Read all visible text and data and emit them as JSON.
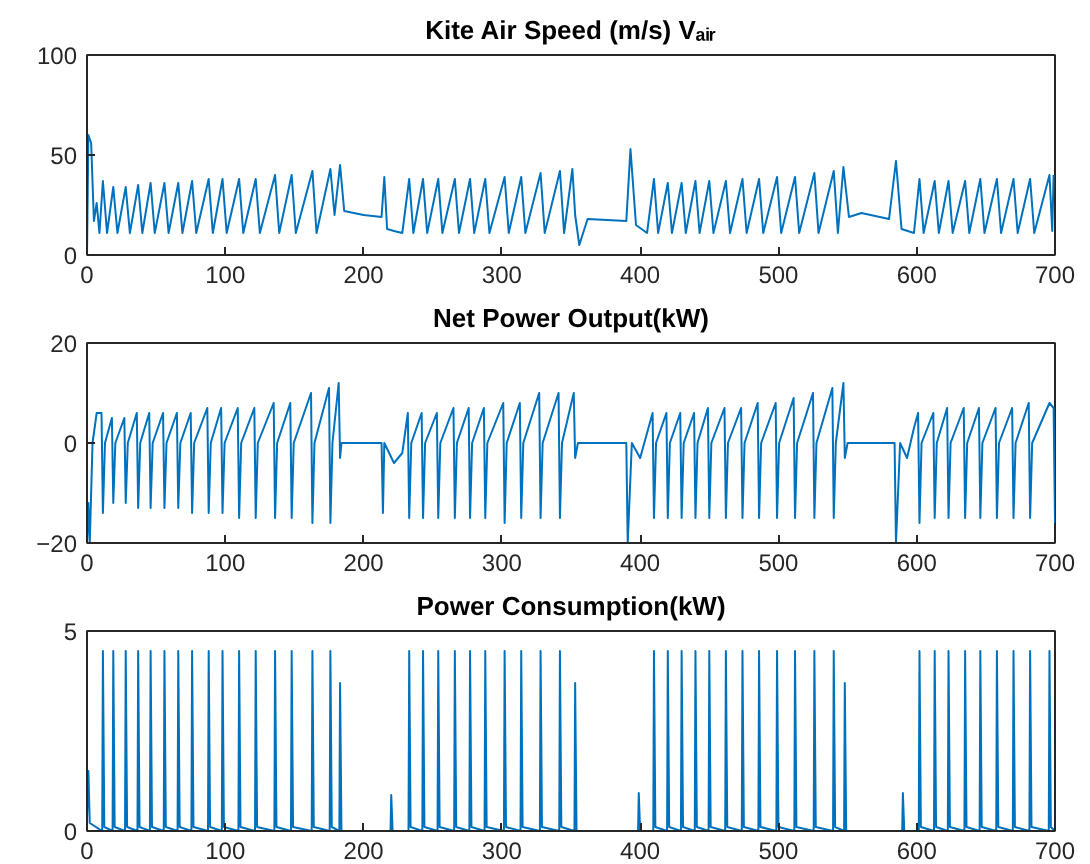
{
  "chart_data": [
    {
      "type": "line",
      "title": "Kite Air Speed (m/s) Vₐᵢᵣ",
      "xlim": [
        0,
        700
      ],
      "xticks": [
        0,
        100,
        200,
        300,
        400,
        500,
        600,
        700
      ],
      "ylim": [
        0,
        100
      ],
      "yticks": [
        0,
        50,
        100
      ],
      "series": [
        {
          "color": "#0072bd",
          "x": [
            0,
            1,
            3,
            5,
            7,
            9,
            11.5,
            14.5,
            19,
            22,
            28,
            31,
            37,
            40,
            46,
            49,
            56,
            59,
            66,
            69,
            76,
            79,
            88,
            91,
            98,
            101,
            110,
            113,
            122,
            125,
            136,
            139,
            148,
            151,
            163,
            166,
            176,
            179,
            183,
            186,
            200,
            213,
            215,
            217,
            222,
            228,
            233,
            236,
            243,
            246,
            254,
            257,
            266,
            269,
            277,
            280,
            288,
            291,
            302,
            305,
            314,
            317,
            328,
            331,
            342,
            345,
            351,
            353,
            356,
            362,
            390,
            393,
            397,
            405,
            410,
            413,
            420,
            423,
            430,
            433,
            440,
            443,
            450,
            453,
            462,
            465,
            474,
            477,
            486,
            489,
            499,
            502,
            512,
            515,
            526,
            529,
            540,
            543,
            547,
            551,
            560,
            580,
            585,
            589,
            598,
            602,
            605,
            613,
            616,
            623,
            626,
            635,
            638,
            646,
            649,
            658,
            661,
            670,
            673,
            682,
            685,
            696,
            698,
            699
          ],
          "values": [
            0,
            60,
            56,
            17,
            26,
            11,
            37,
            11,
            34,
            11,
            34,
            11,
            35,
            11,
            36,
            11,
            36,
            11,
            36,
            11,
            37,
            11,
            38,
            11,
            38,
            11,
            38,
            11,
            38,
            11,
            40,
            11,
            40,
            11,
            42,
            11,
            43,
            20,
            45,
            22,
            20,
            19,
            39,
            13,
            12,
            11,
            38,
            11,
            38,
            11,
            38,
            11,
            38,
            11,
            38,
            11,
            38,
            11,
            39,
            11,
            39,
            11,
            41,
            11,
            42,
            11,
            43,
            20,
            5,
            18,
            17,
            53,
            15,
            11,
            38,
            11,
            36,
            11,
            36,
            11,
            37,
            11,
            37,
            11,
            37,
            11,
            38,
            11,
            38,
            11,
            39,
            11,
            39,
            11,
            41,
            11,
            42,
            11,
            44,
            19,
            21,
            18,
            47,
            13,
            11,
            38,
            11,
            37,
            11,
            37,
            11,
            37,
            11,
            38,
            11,
            38,
            11,
            38,
            11,
            38,
            11,
            40,
            12,
            40
          ]
        }
      ]
    },
    {
      "type": "line",
      "title": "Net Power Output(kW)",
      "xlim": [
        0,
        700
      ],
      "xticks": [
        0,
        100,
        200,
        300,
        400,
        500,
        600,
        700
      ],
      "ylim": [
        -20,
        20
      ],
      "yticks": [
        -20,
        0,
        20
      ],
      "series": [
        {
          "color": "#0072bd",
          "x": [
            0,
            1,
            2,
            4,
            7,
            10.5,
            11.5,
            13,
            18,
            19,
            20.5,
            27,
            28,
            29.5,
            36,
            37,
            38.5,
            45,
            46,
            47.5,
            55,
            56,
            57.5,
            65,
            66,
            67.5,
            75,
            76,
            77.5,
            87,
            88,
            89.5,
            97,
            98,
            99.5,
            109,
            110,
            111.5,
            121,
            122,
            123.5,
            135,
            136,
            137.5,
            147,
            148,
            149.5,
            162,
            163,
            164.5,
            175,
            176,
            177.5,
            182,
            183,
            184,
            213,
            214,
            215,
            222,
            228,
            232,
            233,
            234.5,
            242,
            243,
            244.5,
            253,
            254,
            255.5,
            265,
            266,
            267.5,
            276,
            277,
            278.5,
            287,
            288,
            289.5,
            301,
            302,
            303.5,
            313,
            314,
            315.5,
            327,
            328,
            329.5,
            341,
            342,
            343.5,
            352,
            353,
            355,
            390,
            391,
            394,
            400,
            405,
            409,
            410,
            411.5,
            419,
            420,
            421.5,
            429,
            430,
            431.5,
            439,
            440,
            441.5,
            449,
            450,
            451.5,
            461,
            462,
            463.5,
            473,
            474,
            475.5,
            485,
            486,
            487.5,
            498,
            499,
            500.5,
            511,
            512,
            513.5,
            525,
            526,
            527.5,
            539,
            540,
            541.5,
            547,
            548,
            550,
            584,
            585,
            588,
            593,
            598,
            601,
            602,
            603.5,
            612,
            613,
            614.5,
            622,
            623,
            624.5,
            634,
            635,
            636.5,
            645,
            646,
            647.5,
            657,
            658,
            659.5,
            669,
            670,
            671.5,
            681,
            682,
            683.5,
            696,
            699,
            700
          ],
          "values": [
            -20,
            -12,
            -20,
            0,
            6,
            6,
            -14,
            0,
            5,
            -12,
            0,
            5,
            -12,
            0,
            6,
            -13,
            0,
            6,
            -13,
            0,
            6,
            -13,
            0,
            6,
            -13,
            0,
            6,
            -14,
            0,
            7,
            -14,
            0,
            7,
            -14,
            0,
            7,
            -15,
            0,
            7,
            -15,
            0,
            8,
            -15,
            0,
            8,
            -15,
            0,
            10,
            -16,
            0,
            11,
            -16,
            0,
            12,
            -3,
            0,
            0,
            -14,
            0,
            -4,
            -2,
            6,
            -15,
            0,
            6,
            -15,
            0,
            6,
            -15,
            0,
            7,
            -15,
            0,
            7,
            -15,
            0,
            7,
            -15,
            0,
            8,
            -16,
            0,
            8,
            -15,
            0,
            10,
            -15,
            0,
            10,
            -15,
            0,
            10,
            -3,
            0,
            0,
            -20,
            0,
            -3,
            2,
            6,
            -15,
            0,
            6,
            -15,
            0,
            6,
            -15,
            0,
            6,
            -15,
            0,
            7,
            -15,
            0,
            7,
            -15,
            0,
            7,
            -15,
            0,
            8,
            -15,
            0,
            8,
            -15,
            0,
            9,
            -15,
            0,
            10,
            -15,
            0,
            11,
            -15,
            0,
            12,
            -3,
            0,
            0,
            -20,
            0,
            -3,
            3,
            6,
            -16,
            0,
            6,
            -15,
            0,
            7,
            -15,
            0,
            7,
            -15,
            0,
            7,
            -15,
            0,
            7,
            -15,
            0,
            7,
            -15,
            0,
            8,
            -15,
            0,
            8,
            7,
            -16
          ]
        }
      ]
    },
    {
      "type": "line",
      "title": "Power Consumption(kW)",
      "xlim": [
        0,
        700
      ],
      "xticks": [
        0,
        100,
        200,
        300,
        400,
        500,
        600,
        700
      ],
      "ylim": [
        0,
        5
      ],
      "yticks": [
        0,
        5
      ],
      "series": [
        {
          "color": "#0072bd",
          "x": [
            0,
            1,
            2,
            11,
            11.5,
            12.5,
            18.5,
            19,
            20,
            27.5,
            28,
            29,
            36.5,
            37,
            38,
            45.5,
            46,
            47,
            55.5,
            56,
            57,
            65.5,
            66,
            67,
            75.5,
            76,
            77,
            87.5,
            88,
            89,
            97.5,
            98,
            99,
            109.5,
            110,
            111,
            121.5,
            122,
            123,
            135.5,
            136,
            137,
            147.5,
            148,
            149,
            162.5,
            163,
            164,
            175.5,
            176,
            177,
            182.5,
            183,
            184,
            219.5,
            220,
            221,
            232.5,
            233,
            234,
            242.5,
            243,
            244,
            253.5,
            254,
            255,
            265.5,
            266,
            267,
            276.5,
            277,
            278,
            287.5,
            288,
            289,
            301.5,
            302,
            303,
            313.5,
            314,
            315,
            327.5,
            328,
            329,
            341.5,
            342,
            343,
            352.5,
            353,
            354,
            398.5,
            399,
            400,
            409.5,
            410,
            411,
            419.5,
            420,
            421,
            429.5,
            430,
            431,
            439.5,
            440,
            441,
            449.5,
            450,
            451,
            461.5,
            462,
            463,
            473.5,
            474,
            475,
            485.5,
            486,
            487,
            498.5,
            499,
            500,
            511.5,
            512,
            513,
            525.5,
            526,
            527,
            539.5,
            540,
            541,
            547.5,
            548,
            549,
            589.5,
            590,
            591,
            601.5,
            602,
            603,
            612.5,
            613,
            614,
            622.5,
            623,
            624,
            634.5,
            635,
            636,
            645.5,
            646,
            647,
            657.5,
            658,
            659,
            669.5,
            670,
            671,
            681.5,
            682,
            683,
            695.5,
            696,
            697,
            700
          ],
          "values": [
            0.3,
            1.5,
            0.2,
            0,
            4.5,
            0.1,
            0,
            4.5,
            0.1,
            0,
            4.5,
            0.1,
            0,
            4.5,
            0.1,
            0,
            4.5,
            0.1,
            0,
            4.5,
            0.1,
            0,
            4.5,
            0.1,
            0,
            4.5,
            0.1,
            0,
            4.5,
            0.1,
            0,
            4.5,
            0.1,
            0,
            4.5,
            0.1,
            0,
            4.5,
            0.1,
            0,
            4.5,
            0.1,
            0,
            4.5,
            0.1,
            0,
            4.5,
            0.1,
            0,
            4.5,
            0.1,
            0,
            3.7,
            0,
            0,
            0.9,
            0,
            0,
            4.5,
            0.1,
            0,
            4.5,
            0.1,
            0,
            4.5,
            0.1,
            0,
            4.5,
            0.1,
            0,
            4.5,
            0.1,
            0,
            4.5,
            0.1,
            0,
            4.5,
            0.1,
            0,
            4.5,
            0.1,
            0,
            4.5,
            0.1,
            0,
            4.5,
            0.1,
            0,
            3.7,
            0,
            0,
            0.95,
            0,
            0,
            4.5,
            0.1,
            0,
            4.5,
            0.1,
            0,
            4.5,
            0.1,
            0,
            4.5,
            0.1,
            0,
            4.5,
            0.1,
            0,
            4.5,
            0.1,
            0,
            4.5,
            0.1,
            0,
            4.5,
            0.1,
            0,
            4.5,
            0.1,
            0,
            4.5,
            0.1,
            0,
            4.5,
            0.1,
            0,
            4.5,
            0.1,
            0,
            3.7,
            0,
            0,
            0.95,
            0,
            0,
            4.5,
            0.1,
            0,
            4.5,
            0.1,
            0,
            4.5,
            0.1,
            0,
            4.5,
            0.1,
            0,
            4.5,
            0.1,
            0,
            4.5,
            0.1,
            0,
            4.5,
            0.1,
            0,
            4.5,
            0.1,
            0,
            4.5,
            0.1,
            0
          ]
        }
      ]
    }
  ]
}
